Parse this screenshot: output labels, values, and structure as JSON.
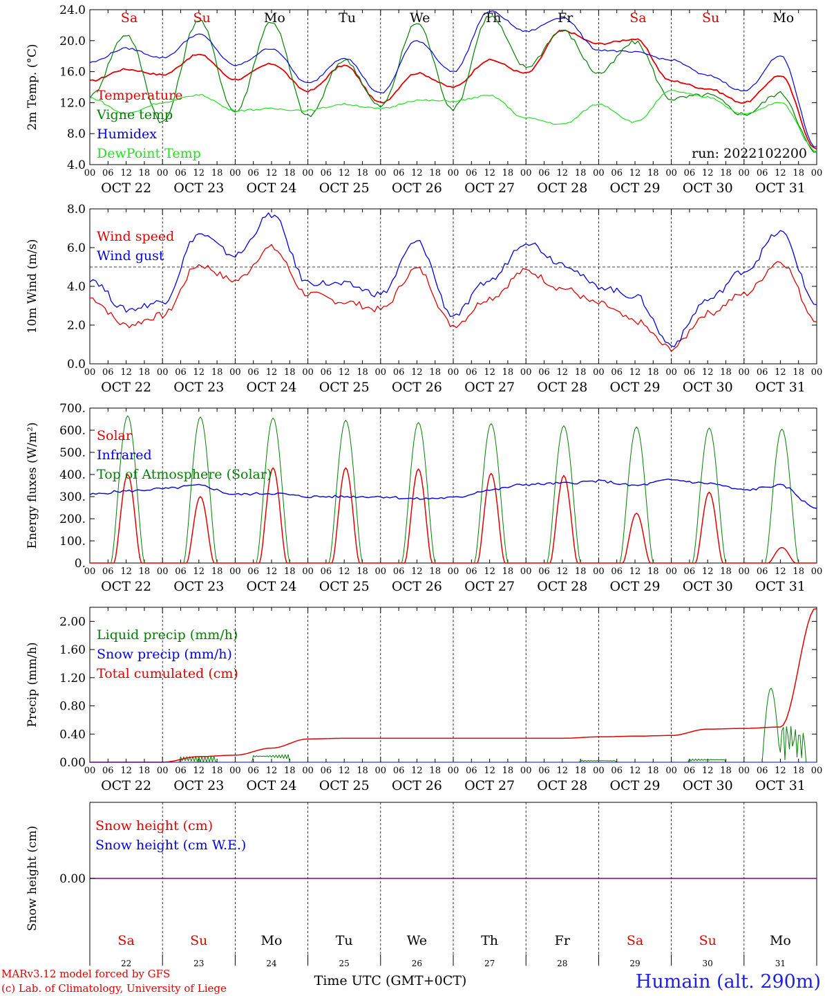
{
  "chart_data": [
    {
      "type": "line",
      "panel": "temperature",
      "ylabel": "2m Temp. (°C)",
      "ylim": [
        4.0,
        24.0
      ],
      "yticks": [
        "4.0",
        "8.0",
        "12.0",
        "16.0",
        "20.0",
        "24.0"
      ],
      "run_label": "run: 2022102200",
      "day_labels": [
        "Sa",
        "Su",
        "Mo",
        "Tu",
        "We",
        "Th",
        "Fr",
        "Sa",
        "Su",
        "Mo"
      ],
      "x_hours": [
        0,
        12,
        24,
        36,
        48,
        60,
        72,
        84,
        96,
        108,
        120,
        132,
        144,
        156,
        168,
        180,
        192,
        204,
        216,
        228,
        240
      ],
      "series": [
        {
          "name": "Temperature",
          "color": "#e00000",
          "values": [
            14.8,
            16.3,
            15.6,
            18.2,
            15.0,
            17.0,
            13.5,
            16.8,
            12.0,
            15.8,
            14.0,
            17.5,
            15.8,
            21.3,
            19.6,
            20.2,
            14.8,
            13.8,
            12.0,
            15.5,
            6.0
          ]
        },
        {
          "name": "Vigne temp",
          "color": "#008000",
          "values": [
            12.8,
            20.8,
            9.5,
            22.7,
            10.8,
            22.5,
            10.2,
            17.5,
            11.5,
            22.3,
            11.2,
            23.2,
            16.6,
            21.3,
            15.8,
            19.8,
            12.5,
            13.0,
            10.5,
            13.2,
            5.5
          ]
        },
        {
          "name": "Humidex",
          "color": "#0000e0",
          "values": [
            17.2,
            19.0,
            17.8,
            20.8,
            16.8,
            19.0,
            14.5,
            17.8,
            13.2,
            20.0,
            16.0,
            23.8,
            21.2,
            23.0,
            18.8,
            18.5,
            17.5,
            15.5,
            13.5,
            18.0,
            6.2
          ]
        },
        {
          "name": "DewPoint Temp",
          "color": "#20e020",
          "values": [
            12.6,
            10.6,
            12.0,
            13.0,
            11.0,
            11.2,
            11.0,
            11.8,
            11.2,
            12.3,
            12.2,
            12.9,
            10.0,
            9.2,
            11.8,
            9.5,
            13.5,
            12.7,
            10.5,
            12.0,
            5.8
          ]
        }
      ]
    },
    {
      "type": "line",
      "panel": "wind",
      "ylabel": "10m Wind (m/s)",
      "ylim": [
        0.0,
        8.0
      ],
      "yticks": [
        "0.0",
        "2.0",
        "4.0",
        "6.0",
        "8.0"
      ],
      "reference_line": 5.0,
      "x_hours": [
        0,
        12,
        24,
        36,
        48,
        60,
        72,
        84,
        96,
        108,
        120,
        132,
        144,
        156,
        168,
        180,
        192,
        204,
        216,
        228,
        240
      ],
      "series": [
        {
          "name": "Wind speed",
          "color": "#e00000",
          "values": [
            3.4,
            2.0,
            2.5,
            5.1,
            4.3,
            6.0,
            3.6,
            3.2,
            2.8,
            4.9,
            2.0,
            3.4,
            4.8,
            3.9,
            3.1,
            2.2,
            0.8,
            2.6,
            3.6,
            5.3,
            2.3
          ]
        },
        {
          "name": "Wind gust",
          "color": "#0000e0",
          "values": [
            4.4,
            2.8,
            3.2,
            6.7,
            5.6,
            7.7,
            4.2,
            4.1,
            3.6,
            6.3,
            2.5,
            4.3,
            6.3,
            5.2,
            4.0,
            3.5,
            1.0,
            3.3,
            4.8,
            6.8,
            3.1
          ]
        }
      ]
    },
    {
      "type": "line",
      "panel": "energy",
      "ylabel": "Energy fluxes (W/m²)",
      "ylim": [
        0,
        700
      ],
      "yticks": [
        "0.",
        "100.",
        "200.",
        "300.",
        "400.",
        "500.",
        "600.",
        "700."
      ],
      "x_hours": [
        0,
        12,
        24,
        36,
        48,
        60,
        72,
        84,
        96,
        108,
        120,
        132,
        144,
        156,
        168,
        180,
        192,
        204,
        216,
        228,
        240
      ],
      "series": [
        {
          "name": "Solar",
          "color": "#e00000",
          "daily_peak": [
            400,
            300,
            430,
            430,
            425,
            405,
            395,
            225,
            320,
            70
          ]
        },
        {
          "name": "Infrared",
          "color": "#0000e0",
          "values": [
            310,
            325,
            335,
            350,
            310,
            315,
            300,
            300,
            300,
            290,
            295,
            330,
            355,
            360,
            370,
            350,
            375,
            360,
            330,
            350,
            250
          ]
        },
        {
          "name": "Top of Atmosphere (Solar)",
          "color": "#008000",
          "daily_peak": [
            665,
            660,
            655,
            645,
            635,
            630,
            620,
            615,
            610,
            605
          ]
        }
      ]
    },
    {
      "type": "line",
      "panel": "precip",
      "ylabel": "Precip (mm/h)",
      "ylim": [
        0.0,
        2.2
      ],
      "yticks": [
        "0.00",
        "0.40",
        "0.80",
        "1.20",
        "1.60",
        "2.00"
      ],
      "x_hours": [
        0,
        12,
        24,
        36,
        48,
        60,
        72,
        84,
        96,
        108,
        120,
        132,
        144,
        156,
        168,
        180,
        192,
        204,
        216,
        228,
        240
      ],
      "series": [
        {
          "name": "Liquid precip (mm/h)",
          "color": "#008000",
          "values": [
            0,
            0,
            0,
            0.08,
            0,
            0.12,
            0,
            0,
            0,
            0,
            0,
            0,
            0,
            0,
            0.03,
            0,
            0,
            0.05,
            0,
            0,
            0
          ]
        },
        {
          "name": "Snow precip (mm/h)",
          "color": "#0000e0",
          "values": [
            0,
            0,
            0,
            0,
            0,
            0,
            0,
            0,
            0,
            0,
            0,
            0,
            0,
            0,
            0,
            0,
            0,
            0,
            0,
            0,
            0
          ]
        },
        {
          "name": "Total cumulated (cm)",
          "color": "#e00000",
          "values": [
            0,
            0,
            0,
            0.08,
            0.1,
            0.2,
            0.33,
            0.34,
            0.34,
            0.34,
            0.34,
            0.34,
            0.34,
            0.34,
            0.36,
            0.37,
            0.38,
            0.47,
            0.48,
            0.5,
            2.2
          ]
        }
      ]
    },
    {
      "type": "line",
      "panel": "snow",
      "ylabel": "Snow height (cm)",
      "ytick": "0.00",
      "series": [
        {
          "name": "Snow height (cm)",
          "color": "#e00000",
          "values": [
            0,
            0
          ]
        },
        {
          "name": "Snow height (cm W.E.)",
          "color": "#0000e0",
          "values": [
            0,
            0
          ]
        }
      ]
    }
  ],
  "axis": {
    "hour_ticks": [
      "00",
      "06",
      "12",
      "18"
    ],
    "final_tick": "00",
    "date_labels": [
      "OCT 22",
      "OCT 23",
      "OCT 24",
      "OCT 25",
      "OCT 26",
      "OCT 27",
      "OCT 28",
      "OCT 29",
      "OCT 30",
      "OCT 31"
    ],
    "bottom_day_numbers": [
      "22",
      "23",
      "24",
      "25",
      "26",
      "27",
      "28",
      "29",
      "30",
      "31"
    ],
    "bottom_day_labels": [
      "Sa",
      "Su",
      "Mo",
      "Tu",
      "We",
      "Th",
      "Fr",
      "Sa",
      "Su",
      "Mo"
    ],
    "xlabel": "Time UTC (GMT+0CT)"
  },
  "footer": {
    "credit_line1": "MARv3.12 model forced by GFS",
    "credit_line2": "(c) Lab. of Climatology, University of Liege",
    "location": "Humain (alt. 290m)"
  },
  "colors": {
    "weekend": "#e00000",
    "weekday": "#000000",
    "location": "#2020e0"
  }
}
